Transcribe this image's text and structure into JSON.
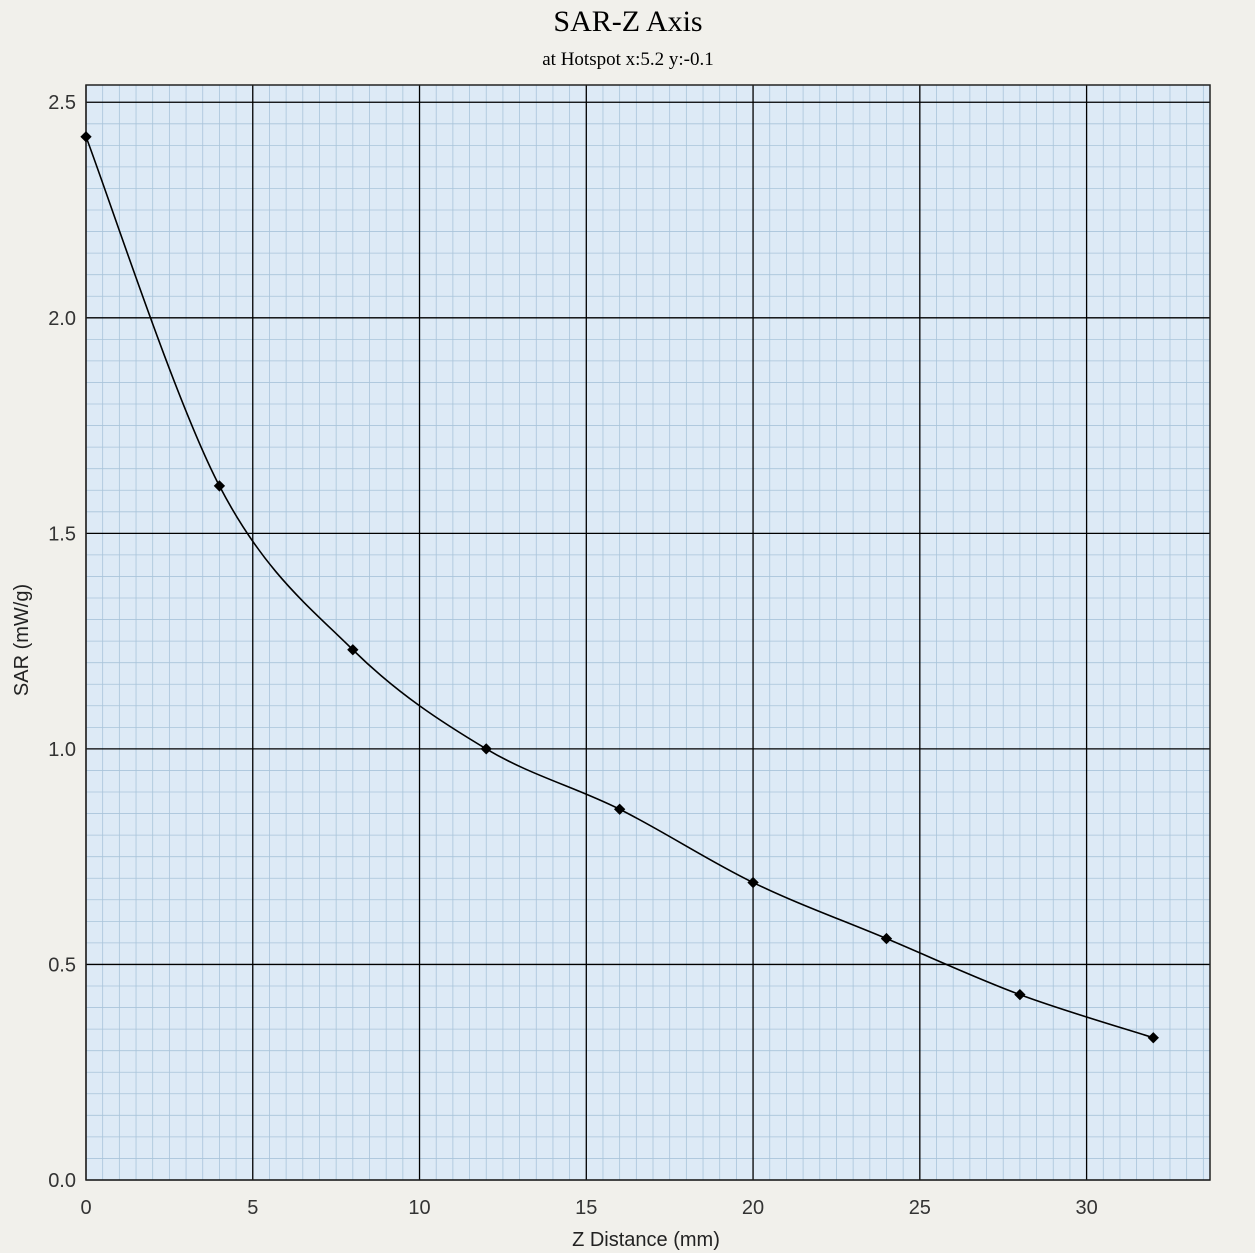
{
  "chart_data": {
    "type": "line",
    "title": "SAR-Z Axis",
    "subtitle": "at Hotspot x:5.2 y:-0.1",
    "xlabel": "Z Distance (mm)",
    "ylabel": "SAR (mW/g)",
    "xlim": [
      0,
      33.7
    ],
    "ylim": [
      0,
      2.54
    ],
    "x_ticks": [
      "0",
      "5",
      "10",
      "15",
      "20",
      "25",
      "30"
    ],
    "y_ticks": [
      "0.0",
      "0.5",
      "1.0",
      "1.5",
      "2.0",
      "2.5"
    ],
    "grid": true,
    "series": [
      {
        "x": [
          0,
          4,
          8,
          12,
          16,
          20,
          24,
          28,
          32
        ],
        "y": [
          2.42,
          1.61,
          1.23,
          1.0,
          0.86,
          0.69,
          0.56,
          0.43,
          0.33
        ]
      }
    ],
    "colors": {
      "plot_bg": "#ddeaf6",
      "minor_grid": "#a9c4da",
      "major_grid": "#000000",
      "line": "#000000"
    }
  }
}
